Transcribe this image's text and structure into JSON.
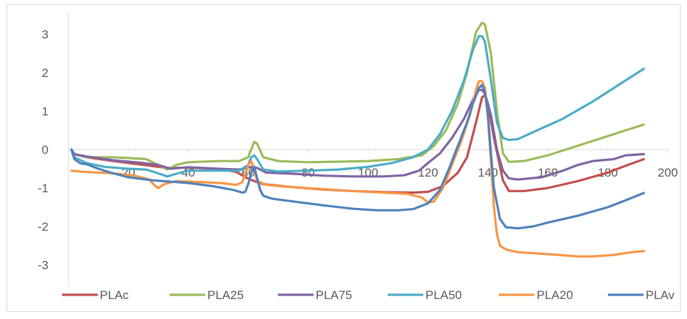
{
  "chart_data": {
    "type": "line",
    "title": "",
    "xlabel": "",
    "ylabel": "",
    "xlim": [
      0,
      200
    ],
    "ylim": [
      -3,
      3
    ],
    "xticks": [
      0,
      20,
      40,
      60,
      80,
      100,
      120,
      140,
      160,
      180,
      200
    ],
    "yticks": [
      3,
      2,
      1,
      0,
      -1,
      -2,
      -3
    ],
    "grid": false,
    "legend_position": "bottom",
    "series": [
      {
        "name": "PLAc",
        "color": "#c0504d",
        "points": [
          [
            1,
            0
          ],
          [
            2,
            -0.12
          ],
          [
            6,
            -0.2
          ],
          [
            15,
            -0.3
          ],
          [
            25,
            -0.4
          ],
          [
            33,
            -0.48
          ],
          [
            40,
            -0.47
          ],
          [
            50,
            -0.5
          ],
          [
            56,
            -0.58
          ],
          [
            59,
            -0.72
          ],
          [
            62,
            -0.82
          ],
          [
            65,
            -0.9
          ],
          [
            75,
            -0.98
          ],
          [
            85,
            -1.04
          ],
          [
            95,
            -1.08
          ],
          [
            105,
            -1.11
          ],
          [
            115,
            -1.12
          ],
          [
            120,
            -1.1
          ],
          [
            125,
            -0.95
          ],
          [
            130,
            -0.6
          ],
          [
            133,
            -0.2
          ],
          [
            136,
            0.7
          ],
          [
            138,
            1.35
          ],
          [
            139,
            1.42
          ],
          [
            140,
            1.2
          ],
          [
            142,
            0.3
          ],
          [
            145,
            -0.8
          ],
          [
            147,
            -1.08
          ],
          [
            152,
            -1.08
          ],
          [
            160,
            -1.0
          ],
          [
            170,
            -0.82
          ],
          [
            180,
            -0.6
          ],
          [
            185,
            -0.45
          ],
          [
            192,
            -0.25
          ]
        ]
      },
      {
        "name": "PLA25",
        "color": "#9bbb59",
        "points": [
          [
            1,
            0
          ],
          [
            2,
            -0.12
          ],
          [
            6,
            -0.2
          ],
          [
            14,
            -0.2
          ],
          [
            20,
            -0.22
          ],
          [
            26,
            -0.25
          ],
          [
            30,
            -0.4
          ],
          [
            33,
            -0.52
          ],
          [
            36,
            -0.4
          ],
          [
            40,
            -0.33
          ],
          [
            50,
            -0.3
          ],
          [
            57,
            -0.3
          ],
          [
            60,
            -0.2
          ],
          [
            62,
            0.2
          ],
          [
            63,
            0.15
          ],
          [
            65,
            -0.2
          ],
          [
            70,
            -0.3
          ],
          [
            80,
            -0.33
          ],
          [
            100,
            -0.3
          ],
          [
            110,
            -0.25
          ],
          [
            118,
            -0.15
          ],
          [
            122,
            0.1
          ],
          [
            126,
            0.5
          ],
          [
            130,
            1.2
          ],
          [
            133,
            2.0
          ],
          [
            136,
            3.05
          ],
          [
            138,
            3.3
          ],
          [
            139,
            3.25
          ],
          [
            141,
            2.5
          ],
          [
            143,
            1.0
          ],
          [
            145,
            -0.1
          ],
          [
            147,
            -0.32
          ],
          [
            152,
            -0.3
          ],
          [
            160,
            -0.15
          ],
          [
            170,
            0.1
          ],
          [
            180,
            0.35
          ],
          [
            186,
            0.5
          ],
          [
            192,
            0.65
          ]
        ]
      },
      {
        "name": "PLA75",
        "color": "#8064a2",
        "points": [
          [
            1,
            0
          ],
          [
            2,
            -0.12
          ],
          [
            6,
            -0.18
          ],
          [
            15,
            -0.28
          ],
          [
            25,
            -0.35
          ],
          [
            30,
            -0.4
          ],
          [
            34,
            -0.5
          ],
          [
            40,
            -0.46
          ],
          [
            50,
            -0.5
          ],
          [
            57,
            -0.52
          ],
          [
            61,
            -0.45
          ],
          [
            63,
            -0.48
          ],
          [
            66,
            -0.6
          ],
          [
            75,
            -0.63
          ],
          [
            85,
            -0.68
          ],
          [
            95,
            -0.7
          ],
          [
            105,
            -0.7
          ],
          [
            112,
            -0.67
          ],
          [
            117,
            -0.55
          ],
          [
            120,
            -0.35
          ],
          [
            124,
            -0.1
          ],
          [
            128,
            0.3
          ],
          [
            132,
            0.8
          ],
          [
            135,
            1.3
          ],
          [
            137,
            1.55
          ],
          [
            138,
            1.55
          ],
          [
            139,
            1.45
          ],
          [
            141,
            0.9
          ],
          [
            143,
            0.0
          ],
          [
            145,
            -0.55
          ],
          [
            147,
            -0.75
          ],
          [
            150,
            -0.78
          ],
          [
            158,
            -0.72
          ],
          [
            165,
            -0.55
          ],
          [
            170,
            -0.4
          ],
          [
            175,
            -0.3
          ],
          [
            182,
            -0.25
          ],
          [
            186,
            -0.15
          ],
          [
            192,
            -0.12
          ]
        ]
      },
      {
        "name": "PLA50",
        "color": "#4bacc6",
        "points": [
          [
            1,
            0
          ],
          [
            2,
            -0.2
          ],
          [
            6,
            -0.35
          ],
          [
            12,
            -0.45
          ],
          [
            20,
            -0.5
          ],
          [
            26,
            -0.52
          ],
          [
            30,
            -0.62
          ],
          [
            33,
            -0.7
          ],
          [
            36,
            -0.63
          ],
          [
            40,
            -0.55
          ],
          [
            50,
            -0.55
          ],
          [
            57,
            -0.55
          ],
          [
            60,
            -0.4
          ],
          [
            61,
            -0.2
          ],
          [
            62,
            -0.15
          ],
          [
            63,
            -0.25
          ],
          [
            65,
            -0.52
          ],
          [
            70,
            -0.57
          ],
          [
            80,
            -0.55
          ],
          [
            90,
            -0.52
          ],
          [
            100,
            -0.45
          ],
          [
            108,
            -0.35
          ],
          [
            115,
            -0.2
          ],
          [
            120,
            0.0
          ],
          [
            124,
            0.4
          ],
          [
            128,
            1.0
          ],
          [
            132,
            1.8
          ],
          [
            135,
            2.6
          ],
          [
            137,
            2.95
          ],
          [
            138,
            2.95
          ],
          [
            139,
            2.8
          ],
          [
            141,
            1.8
          ],
          [
            143,
            0.7
          ],
          [
            145,
            0.3
          ],
          [
            147,
            0.25
          ],
          [
            150,
            0.27
          ],
          [
            155,
            0.45
          ],
          [
            165,
            0.8
          ],
          [
            175,
            1.25
          ],
          [
            185,
            1.75
          ],
          [
            192,
            2.1
          ]
        ]
      },
      {
        "name": "PLA20",
        "color": "#f79646",
        "points": [
          [
            1,
            -0.55
          ],
          [
            5,
            -0.58
          ],
          [
            15,
            -0.62
          ],
          [
            22,
            -0.68
          ],
          [
            27,
            -0.78
          ],
          [
            29,
            -0.95
          ],
          [
            30,
            -1.0
          ],
          [
            32,
            -0.9
          ],
          [
            36,
            -0.82
          ],
          [
            45,
            -0.85
          ],
          [
            52,
            -0.88
          ],
          [
            56,
            -0.92
          ],
          [
            58,
            -0.85
          ],
          [
            59,
            -0.65
          ],
          [
            60,
            -0.4
          ],
          [
            61,
            -0.3
          ],
          [
            62,
            -0.5
          ],
          [
            63,
            -0.82
          ],
          [
            66,
            -0.92
          ],
          [
            75,
            -0.98
          ],
          [
            85,
            -1.03
          ],
          [
            95,
            -1.08
          ],
          [
            105,
            -1.12
          ],
          [
            113,
            -1.15
          ],
          [
            118,
            -1.25
          ],
          [
            120,
            -1.38
          ],
          [
            122,
            -1.35
          ],
          [
            125,
            -1.0
          ],
          [
            128,
            -0.4
          ],
          [
            131,
            0.2
          ],
          [
            134,
            0.9
          ],
          [
            136,
            1.55
          ],
          [
            137,
            1.78
          ],
          [
            138,
            1.78
          ],
          [
            139,
            1.6
          ],
          [
            140,
            0.8
          ],
          [
            141,
            -0.3
          ],
          [
            142,
            -1.5
          ],
          [
            143,
            -2.2
          ],
          [
            144,
            -2.5
          ],
          [
            146,
            -2.6
          ],
          [
            150,
            -2.67
          ],
          [
            160,
            -2.72
          ],
          [
            170,
            -2.78
          ],
          [
            175,
            -2.78
          ],
          [
            182,
            -2.74
          ],
          [
            188,
            -2.67
          ],
          [
            192,
            -2.64
          ]
        ]
      },
      {
        "name": "PLAv",
        "color": "#4f81bd",
        "points": [
          [
            1,
            0
          ],
          [
            2,
            -0.25
          ],
          [
            4,
            -0.36
          ],
          [
            6,
            -0.38
          ],
          [
            10,
            -0.5
          ],
          [
            15,
            -0.62
          ],
          [
            20,
            -0.72
          ],
          [
            28,
            -0.8
          ],
          [
            35,
            -0.84
          ],
          [
            40,
            -0.87
          ],
          [
            48,
            -0.95
          ],
          [
            55,
            -1.05
          ],
          [
            58,
            -1.12
          ],
          [
            59,
            -1.1
          ],
          [
            60,
            -0.9
          ],
          [
            61,
            -0.6
          ],
          [
            62,
            -0.45
          ],
          [
            63,
            -0.75
          ],
          [
            64,
            -1.05
          ],
          [
            65,
            -1.2
          ],
          [
            68,
            -1.28
          ],
          [
            75,
            -1.35
          ],
          [
            85,
            -1.45
          ],
          [
            95,
            -1.54
          ],
          [
            103,
            -1.58
          ],
          [
            110,
            -1.58
          ],
          [
            115,
            -1.55
          ],
          [
            120,
            -1.4
          ],
          [
            124,
            -1.05
          ],
          [
            127,
            -0.5
          ],
          [
            130,
            0.1
          ],
          [
            133,
            0.7
          ],
          [
            135,
            1.2
          ],
          [
            137,
            1.6
          ],
          [
            138,
            1.68
          ],
          [
            139,
            1.5
          ],
          [
            140,
            0.9
          ],
          [
            141,
            -0.1
          ],
          [
            142,
            -1.0
          ],
          [
            144,
            -1.8
          ],
          [
            146,
            -2.02
          ],
          [
            150,
            -2.05
          ],
          [
            155,
            -2.0
          ],
          [
            160,
            -1.9
          ],
          [
            170,
            -1.72
          ],
          [
            180,
            -1.5
          ],
          [
            186,
            -1.32
          ],
          [
            192,
            -1.13
          ]
        ]
      }
    ]
  }
}
